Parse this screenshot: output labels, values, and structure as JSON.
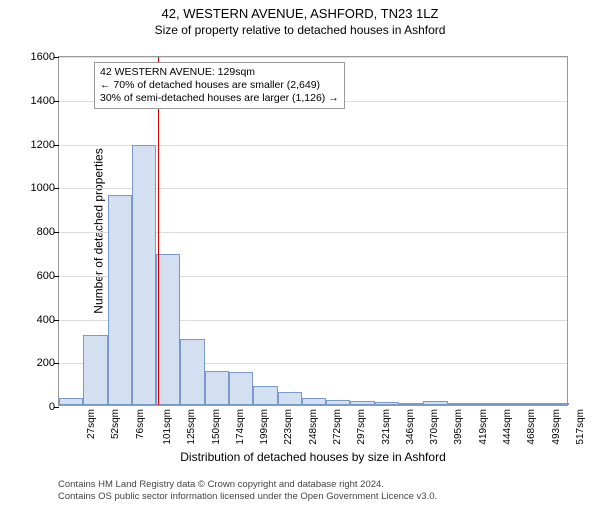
{
  "title": "42, WESTERN AVENUE, ASHFORD, TN23 1LZ",
  "subtitle": "Size of property relative to detached houses in Ashford",
  "chart": {
    "type": "histogram",
    "ylabel": "Number of detached properties",
    "xlabel": "Distribution of detached houses by size in Ashford",
    "ylim": [
      0,
      1600
    ],
    "ytick_step": 200,
    "bar_fill": "#d3e0f2",
    "bar_stroke": "#7a99c9",
    "grid_color": "#dddddd",
    "background": "#ffffff",
    "ref_line_x": 129,
    "ref_line_color": "#d40000",
    "x_start": 27,
    "bin_width_sqm": 25,
    "categories": [
      "27sqm",
      "52sqm",
      "76sqm",
      "101sqm",
      "125sqm",
      "150sqm",
      "174sqm",
      "199sqm",
      "223sqm",
      "248sqm",
      "272sqm",
      "297sqm",
      "321sqm",
      "346sqm",
      "370sqm",
      "395sqm",
      "419sqm",
      "444sqm",
      "468sqm",
      "493sqm",
      "517sqm"
    ],
    "values": [
      30,
      320,
      960,
      1190,
      690,
      300,
      155,
      150,
      85,
      60,
      30,
      25,
      20,
      15,
      10,
      20,
      8,
      5,
      5,
      3,
      3
    ]
  },
  "annotation": {
    "line1": "42 WESTERN AVENUE: 129sqm",
    "line2": "← 70% of detached houses are smaller (2,649)",
    "line3": "30% of semi-detached houses are larger (1,126) →"
  },
  "footer": {
    "line1": "Contains HM Land Registry data © Crown copyright and database right 2024.",
    "line2": "Contains OS public sector information licensed under the Open Government Licence v3.0."
  }
}
